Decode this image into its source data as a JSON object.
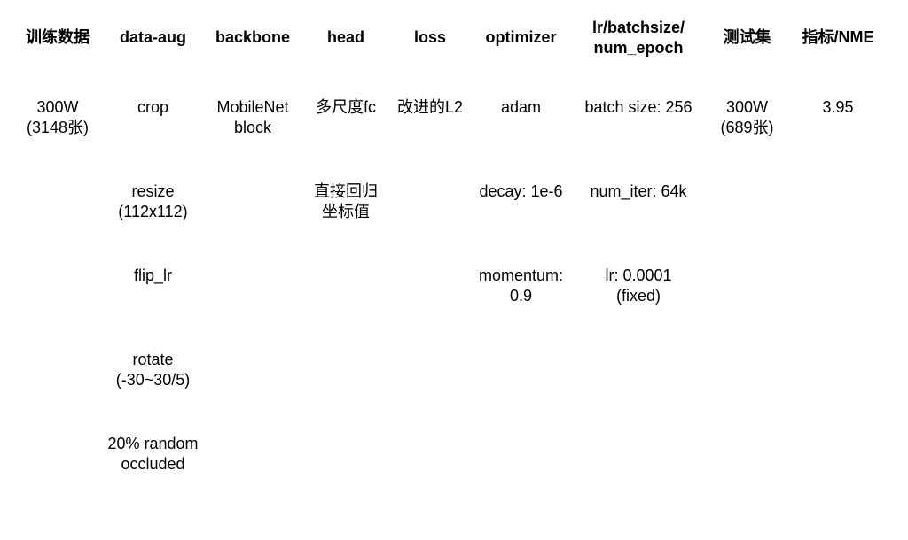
{
  "table": {
    "headers": [
      "训练数据",
      "data-aug",
      "backbone",
      "head",
      "loss",
      "optimizer",
      "lr/batchsize/\nnum_epoch",
      "测试集",
      "指标/NME"
    ],
    "rows": [
      [
        "300W\n(3148张)",
        "crop",
        "MobileNet\nblock",
        "多尺度fc",
        "改进的L2",
        "adam",
        "batch size: 256",
        "300W\n(689张)",
        "3.95"
      ],
      [
        "",
        "resize\n(112x112)",
        "",
        "直接回归\n坐标值",
        "",
        "decay: 1e-6",
        "num_iter: 64k",
        "",
        ""
      ],
      [
        "",
        "flip_lr",
        "",
        "",
        "",
        "momentum:\n0.9",
        "lr: 0.0001\n(fixed)",
        "",
        ""
      ],
      [
        "",
        "rotate\n(-30~30/5)",
        "",
        "",
        "",
        "",
        "",
        "",
        ""
      ],
      [
        "",
        "20% random\noccluded",
        "",
        "",
        "",
        "",
        "",
        "",
        ""
      ]
    ],
    "text_color": "#000000",
    "background_color": "#ffffff",
    "header_font_weight": 700,
    "body_font_weight": 400,
    "font_size_pt": 14
  }
}
